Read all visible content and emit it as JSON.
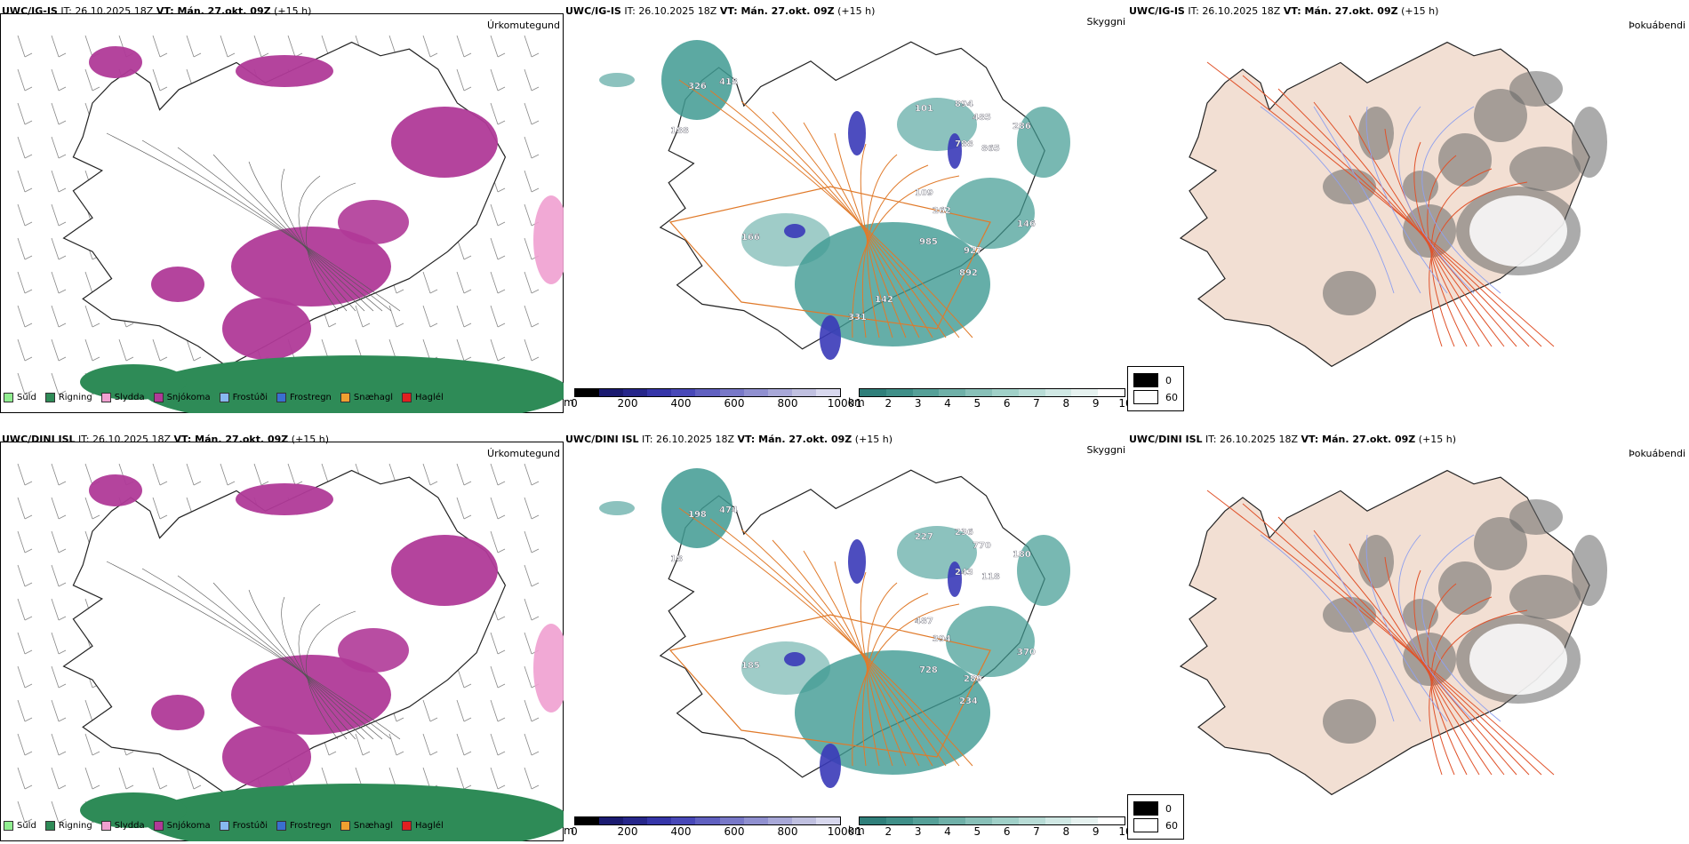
{
  "panels": [
    {
      "row": 0,
      "model": "UWC/IG-IS",
      "time": " IT: 26.10.2025 18Z ",
      "valid": "VT: Mán. 27.okt. 09Z",
      "lead": " (+15 h)",
      "titles": [
        "Úrkomutegund",
        "Skyggni",
        "Þokuábendi"
      ],
      "vis_labels": [
        "326",
        "418",
        "188",
        "101",
        "894",
        "485",
        "286",
        "788",
        "865",
        "109",
        "262",
        "166",
        "927",
        "985",
        "892",
        "146",
        "331",
        "142"
      ]
    },
    {
      "row": 1,
      "model": "UWC/DINI ISL",
      "time": " IT: 26.10.2025 18Z ",
      "valid": "VT: Mán. 27.okt. 09Z",
      "lead": " (+15 h)",
      "titles": [
        "Úrkomutegund",
        "Skyggni",
        "Þokuábendi"
      ],
      "vis_labels": [
        "198",
        "474",
        "18",
        "227",
        "236",
        "770",
        "180",
        "243",
        "118",
        "487",
        "394",
        "185",
        "289",
        "728",
        "234",
        "370"
      ]
    }
  ],
  "precip_legend": [
    {
      "label": "Súld",
      "color": "#90ee90"
    },
    {
      "label": "Rigning",
      "color": "#2e8b57"
    },
    {
      "label": "Slydda",
      "color": "#f0a0d0"
    },
    {
      "label": "Snjókoma",
      "color": "#b03a98"
    },
    {
      "label": "Frostúði",
      "color": "#87b8f0"
    },
    {
      "label": "Frostregn",
      "color": "#3a6fd0"
    },
    {
      "label": "Snæhagl",
      "color": "#f0a030"
    },
    {
      "label": "Haglél",
      "color": "#e02020"
    }
  ],
  "ceiling_bar": {
    "unit": "m",
    "ticks": [
      "0",
      "200",
      "400",
      "600",
      "800",
      "1000"
    ]
  },
  "vis_bar": {
    "unit": "km",
    "ticks": [
      "1",
      "2",
      "3",
      "4",
      "5",
      "6",
      "7",
      "8",
      "9",
      "10"
    ]
  },
  "cloud_legend": [
    "0",
    "60"
  ],
  "colors": {
    "snow": "#b03a98",
    "rain": "#2e8b57",
    "sleet": "#f0a0d0",
    "vis": "#3f9a92",
    "ceiling": "#3a3ab8",
    "roads": "#e07a2a",
    "land": "#f2dfd3",
    "fog": "#666666"
  }
}
